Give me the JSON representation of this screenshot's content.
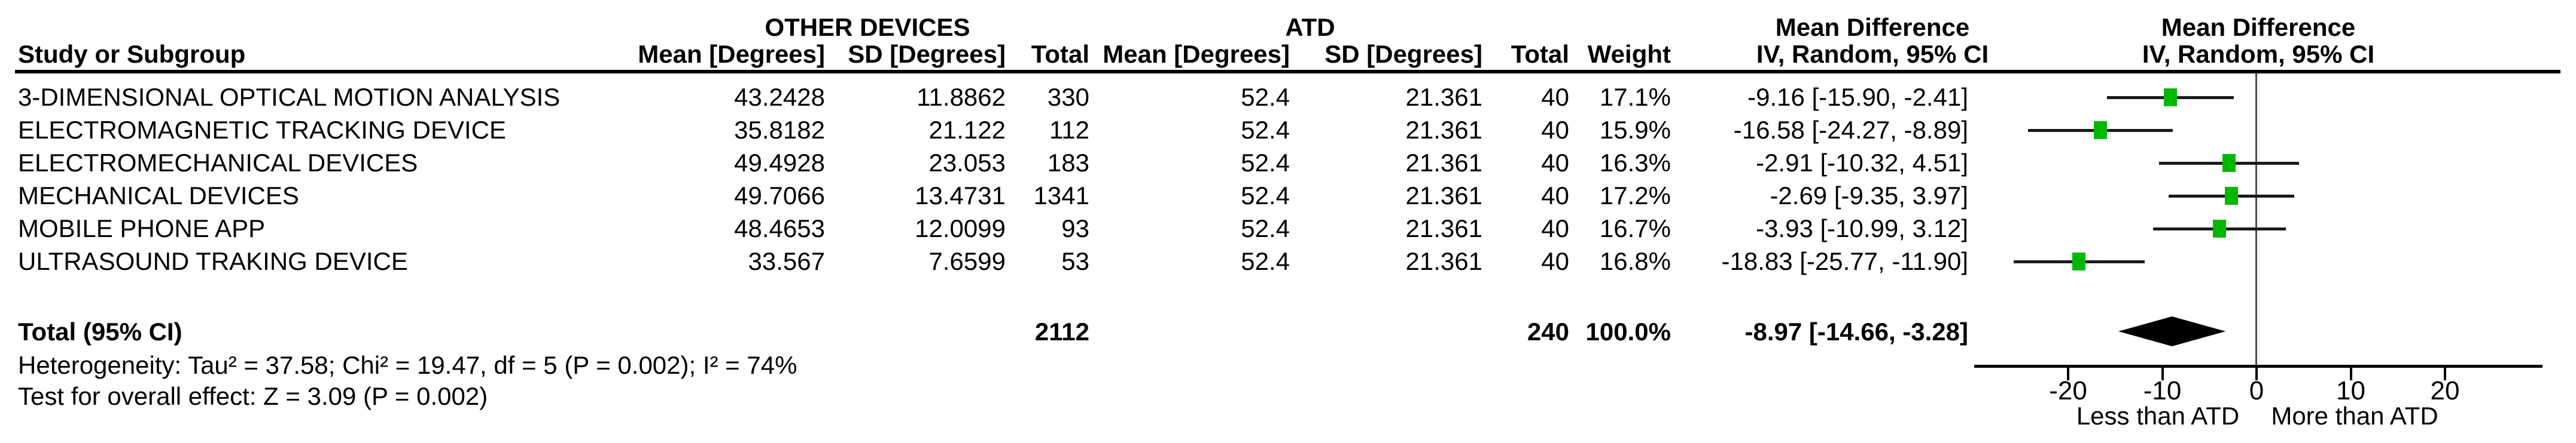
{
  "header": {
    "group_other": "OTHER DEVICES",
    "group_atd": "ATD",
    "study_col": "Study or Subgroup",
    "mean_col_other": "Mean [Degrees]",
    "sd_col_other": "SD [Degrees]",
    "total_col_other": "Total",
    "mean_col_atd": "Mean [Degrees]",
    "sd_col_atd": "SD [Degrees]",
    "total_col_atd": "Total",
    "weight_col": "Weight",
    "md_col_line1": "Mean Difference",
    "md_col_line2": "IV, Random, 95% CI",
    "plot_col_line1": "Mean Difference",
    "plot_col_line2": "IV, Random, 95% CI"
  },
  "rows": [
    {
      "study": "3-DIMENSIONAL OPTICAL MOTION ANALYSIS",
      "mean_other": "43.2428",
      "sd_other": "11.8862",
      "total_other": "330",
      "mean_atd": "52.4",
      "sd_atd": "21.361",
      "total_atd": "40",
      "weight": "17.1%",
      "md_ci": "-9.16 [-15.90, -2.41]",
      "md": -9.16,
      "ci_low": -15.9,
      "ci_high": -2.41
    },
    {
      "study": "ELECTROMAGNETIC TRACKING DEVICE",
      "mean_other": "35.8182",
      "sd_other": "21.122",
      "total_other": "112",
      "mean_atd": "52.4",
      "sd_atd": "21.361",
      "total_atd": "40",
      "weight": "15.9%",
      "md_ci": "-16.58 [-24.27, -8.89]",
      "md": -16.58,
      "ci_low": -24.27,
      "ci_high": -8.89
    },
    {
      "study": "ELECTROMECHANICAL DEVICES",
      "mean_other": "49.4928",
      "sd_other": "23.053",
      "total_other": "183",
      "mean_atd": "52.4",
      "sd_atd": "21.361",
      "total_atd": "40",
      "weight": "16.3%",
      "md_ci": "-2.91 [-10.32, 4.51]",
      "md": -2.91,
      "ci_low": -10.32,
      "ci_high": 4.51
    },
    {
      "study": "MECHANICAL DEVICES",
      "mean_other": "49.7066",
      "sd_other": "13.4731",
      "total_other": "1341",
      "mean_atd": "52.4",
      "sd_atd": "21.361",
      "total_atd": "40",
      "weight": "17.2%",
      "md_ci": "-2.69 [-9.35, 3.97]",
      "md": -2.69,
      "ci_low": -9.35,
      "ci_high": 3.97
    },
    {
      "study": "MOBILE PHONE APP",
      "mean_other": "48.4653",
      "sd_other": "12.0099",
      "total_other": "93",
      "mean_atd": "52.4",
      "sd_atd": "21.361",
      "total_atd": "40",
      "weight": "16.7%",
      "md_ci": "-3.93 [-10.99, 3.12]",
      "md": -3.93,
      "ci_low": -10.99,
      "ci_high": 3.12
    },
    {
      "study": "ULTRASOUND TRAKING DEVICE",
      "mean_other": "33.567",
      "sd_other": "7.6599",
      "total_other": "53",
      "mean_atd": "52.4",
      "sd_atd": "21.361",
      "total_atd": "40",
      "weight": "16.8%",
      "md_ci": "-18.83 [-25.77, -11.90]",
      "md": -18.83,
      "ci_low": -25.77,
      "ci_high": -11.9
    }
  ],
  "total_row": {
    "label": "Total (95% CI)",
    "total_other": "2112",
    "total_atd": "240",
    "weight": "100.0%",
    "md_ci": "-8.97 [-14.66, -3.28]",
    "md": -8.97,
    "ci_low": -14.66,
    "ci_high": -3.28
  },
  "footnotes": {
    "heterogeneity": "Heterogeneity: Tau² = 37.58; Chi² = 19.47, df = 5 (P = 0.002); I² = 74%",
    "overall_effect": "Test for overall effect: Z = 3.09 (P = 0.002)"
  },
  "axis": {
    "ticks": [
      "-20",
      "-10",
      "0",
      "10",
      "20"
    ],
    "tick_values": [
      -20,
      -10,
      0,
      10,
      20
    ],
    "label_left": "Less than ATD",
    "label_right": "More than ATD"
  },
  "colors": {
    "square_green": "#00b800",
    "diamond_black": "#000000",
    "ci_line": "#1a1a1a",
    "zero_line_gray": "#4d4d4d"
  },
  "chart_data": {
    "type": "scatter",
    "subtype": "forest-plot",
    "title": "Mean Difference IV, Random, 95% CI",
    "xlabel_left": "Less than ATD",
    "xlabel_right": "More than ATD",
    "xlim": [
      -30,
      30
    ],
    "x_ticks": [
      -20,
      -10,
      0,
      10,
      20
    ],
    "grid": false,
    "legend_position": "none",
    "points": [
      {
        "name": "3-DIMENSIONAL OPTICAL MOTION ANALYSIS",
        "md": -9.16,
        "ci_low": -15.9,
        "ci_high": -2.41,
        "weight_pct": 17.1
      },
      {
        "name": "ELECTROMAGNETIC TRACKING DEVICE",
        "md": -16.58,
        "ci_low": -24.27,
        "ci_high": -8.89,
        "weight_pct": 15.9
      },
      {
        "name": "ELECTROMECHANICAL DEVICES",
        "md": -2.91,
        "ci_low": -10.32,
        "ci_high": 4.51,
        "weight_pct": 16.3
      },
      {
        "name": "MECHANICAL DEVICES",
        "md": -2.69,
        "ci_low": -9.35,
        "ci_high": 3.97,
        "weight_pct": 17.2
      },
      {
        "name": "MOBILE PHONE APP",
        "md": -3.93,
        "ci_low": -10.99,
        "ci_high": 3.12,
        "weight_pct": 16.7
      },
      {
        "name": "ULTRASOUND TRAKING DEVICE",
        "md": -18.83,
        "ci_low": -25.77,
        "ci_high": -11.9,
        "weight_pct": 16.8
      }
    ],
    "total": {
      "name": "Total (95% CI)",
      "md": -8.97,
      "ci_low": -14.66,
      "ci_high": -3.28,
      "weight_pct": 100.0,
      "heterogeneity": {
        "tau2": 37.58,
        "chi2": 19.47,
        "df": 5,
        "p": 0.002,
        "i2_pct": 74
      },
      "overall_effect": {
        "z": 3.09,
        "p": 0.002
      }
    }
  }
}
